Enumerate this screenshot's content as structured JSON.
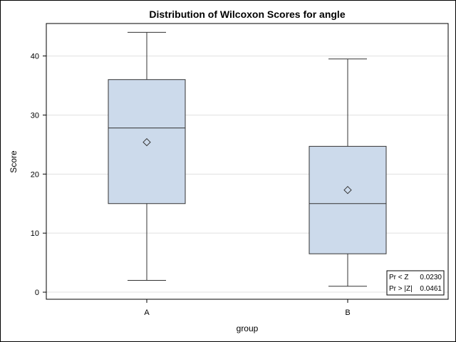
{
  "chart_data": {
    "type": "box",
    "title": "Distribution of Wilcoxon Scores for angle",
    "xlabel": "group",
    "ylabel": "Score",
    "ylim": [
      -1.2,
      45.5
    ],
    "yticks": [
      0,
      10,
      20,
      30,
      40
    ],
    "grid": true,
    "categories": [
      "A",
      "B"
    ],
    "boxes": [
      {
        "category": "A",
        "min": 2,
        "q1": 15,
        "median": 27.8,
        "mean": 25.4,
        "q3": 36,
        "max": 44
      },
      {
        "category": "B",
        "min": 1,
        "q1": 6.5,
        "median": 15,
        "mean": 17.3,
        "q3": 24.7,
        "max": 39.5
      }
    ],
    "colors": {
      "box_fill": "#ccdaeb",
      "box_stroke": "#333333",
      "grid": "#e0e0e0"
    },
    "inset": {
      "placement": "bottom-right",
      "rows": [
        {
          "label": "Pr < Z",
          "value": "0.0230"
        },
        {
          "label": "Pr > |Z|",
          "value": "0.0461"
        }
      ]
    }
  }
}
